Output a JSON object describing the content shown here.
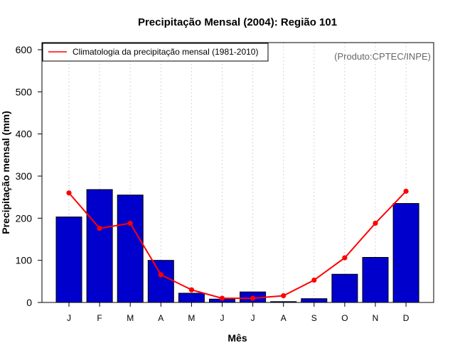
{
  "chart_data": {
    "type": "bar",
    "title": "Precipitação Mensal (2004): Região 101",
    "xlabel": "Mês",
    "ylabel": "Precipitação mensal (mm)",
    "ylim": [
      0,
      600
    ],
    "yticks": [
      0,
      100,
      200,
      300,
      400,
      500,
      600
    ],
    "categories": [
      "J",
      "F",
      "M",
      "A",
      "M",
      "J",
      "J",
      "A",
      "S",
      "O",
      "N",
      "D"
    ],
    "series": [
      {
        "name": "Precipitação mensal 2004",
        "type": "bar",
        "color": "#0000CC",
        "values": [
          203,
          268,
          255,
          100,
          22,
          8,
          25,
          2,
          9,
          67,
          107,
          235
        ]
      },
      {
        "name": "Climatologia da precipitação mensal (1981-2010)",
        "type": "line",
        "color": "#FF0000",
        "values": [
          260,
          176,
          188,
          66,
          30,
          10,
          10,
          16,
          53,
          106,
          188,
          264
        ]
      }
    ],
    "legend": {
      "position": "top-left",
      "label": "Climatologia da precipitação mensal (1981-2010)"
    },
    "annotation": "(Produto:CPTEC/INPE)",
    "grid": "vertical dotted"
  }
}
